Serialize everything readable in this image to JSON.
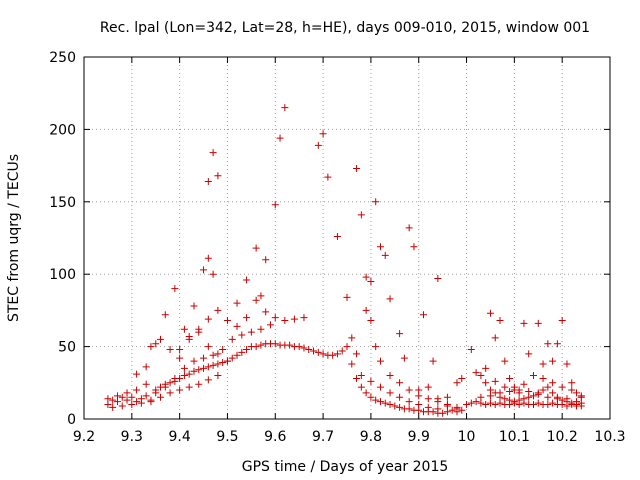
{
  "chart_data": {
    "type": "scatter",
    "title": "Rec. lpal (Lon=342, Lat=28, h=HE), days 009-010, 2015, window 001",
    "xlabel": "GPS time / Days of year 2015",
    "ylabel": "STEC from uqrg / TECUs",
    "xlim": [
      9.2,
      10.3
    ],
    "ylim": [
      0,
      250
    ],
    "xticks": [
      9.2,
      9.3,
      9.4,
      9.5,
      9.6,
      9.7,
      9.8,
      9.9,
      10,
      10.1,
      10.2,
      10.3
    ],
    "xtick_labels": [
      "9.2",
      "9.3",
      "9.4",
      "9.5",
      "9.6",
      "9.7",
      "9.8",
      "9.9",
      "10",
      "10.1",
      "10.2",
      "10.3"
    ],
    "yticks": [
      0,
      50,
      100,
      150,
      200,
      250
    ],
    "ytick_labels": [
      "0",
      "50",
      "100",
      "150",
      "200",
      "250"
    ],
    "grid": true,
    "marker": "+",
    "color": "#cc0000",
    "series": [
      {
        "name": "STEC",
        "points": [
          [
            9.25,
            10
          ],
          [
            9.26,
            13
          ],
          [
            9.27,
            12
          ],
          [
            9.28,
            15
          ],
          [
            9.29,
            13
          ],
          [
            9.3,
            15
          ],
          [
            9.31,
            12
          ],
          [
            9.32,
            14
          ],
          [
            9.33,
            16
          ],
          [
            9.34,
            13
          ],
          [
            9.35,
            20
          ],
          [
            9.36,
            22
          ],
          [
            9.37,
            24
          ],
          [
            9.38,
            25
          ],
          [
            9.39,
            26
          ],
          [
            9.4,
            28
          ],
          [
            9.41,
            30
          ],
          [
            9.42,
            31
          ],
          [
            9.43,
            33
          ],
          [
            9.44,
            34
          ],
          [
            9.45,
            35
          ],
          [
            9.46,
            36
          ],
          [
            9.47,
            37
          ],
          [
            9.48,
            38
          ],
          [
            9.49,
            39
          ],
          [
            9.5,
            40
          ],
          [
            9.51,
            42
          ],
          [
            9.52,
            44
          ],
          [
            9.53,
            46
          ],
          [
            9.54,
            48
          ],
          [
            9.55,
            50
          ],
          [
            9.56,
            50
          ],
          [
            9.57,
            51
          ],
          [
            9.58,
            52
          ],
          [
            9.59,
            52
          ],
          [
            9.6,
            52
          ],
          [
            9.61,
            51
          ],
          [
            9.62,
            51
          ],
          [
            9.63,
            51
          ],
          [
            9.64,
            50
          ],
          [
            9.65,
            50
          ],
          [
            9.66,
            49
          ],
          [
            9.67,
            48
          ],
          [
            9.68,
            47
          ],
          [
            9.69,
            46
          ],
          [
            9.7,
            45
          ],
          [
            9.71,
            44
          ],
          [
            9.72,
            44
          ],
          [
            9.73,
            45
          ],
          [
            9.74,
            47
          ],
          [
            9.75,
            50
          ],
          [
            9.76,
            38
          ],
          [
            9.77,
            28
          ],
          [
            9.78,
            22
          ],
          [
            9.79,
            18
          ],
          [
            9.8,
            15
          ],
          [
            9.81,
            13
          ],
          [
            9.82,
            12
          ],
          [
            9.83,
            11
          ],
          [
            9.84,
            10
          ],
          [
            9.85,
            9
          ],
          [
            9.86,
            8
          ],
          [
            9.87,
            7
          ],
          [
            9.88,
            7
          ],
          [
            9.89,
            6
          ],
          [
            9.9,
            6
          ],
          [
            9.91,
            5
          ],
          [
            9.92,
            5
          ],
          [
            9.93,
            5
          ],
          [
            9.94,
            4
          ],
          [
            9.95,
            4
          ],
          [
            9.96,
            5
          ],
          [
            9.97,
            6
          ],
          [
            9.98,
            5
          ],
          [
            9.25,
            14
          ],
          [
            9.27,
            16
          ],
          [
            9.29,
            18
          ],
          [
            9.31,
            20
          ],
          [
            9.33,
            24
          ],
          [
            9.35,
            18
          ],
          [
            9.37,
            22
          ],
          [
            9.39,
            28
          ],
          [
            9.41,
            35
          ],
          [
            9.43,
            40
          ],
          [
            9.45,
            42
          ],
          [
            9.47,
            44
          ],
          [
            9.49,
            48
          ],
          [
            9.51,
            55
          ],
          [
            9.53,
            58
          ],
          [
            9.55,
            60
          ],
          [
            9.57,
            62
          ],
          [
            9.59,
            65
          ],
          [
            9.26,
            8
          ],
          [
            9.28,
            9
          ],
          [
            9.3,
            10
          ],
          [
            9.32,
            11
          ],
          [
            9.34,
            12
          ],
          [
            9.36,
            15
          ],
          [
            9.38,
            18
          ],
          [
            9.4,
            20
          ],
          [
            9.42,
            22
          ],
          [
            9.44,
            24
          ],
          [
            9.46,
            27
          ],
          [
            9.48,
            30
          ],
          [
            9.34,
            50
          ],
          [
            9.36,
            55
          ],
          [
            9.38,
            48
          ],
          [
            9.4,
            42
          ],
          [
            9.42,
            55
          ],
          [
            9.44,
            60
          ],
          [
            9.46,
            50
          ],
          [
            9.48,
            45
          ],
          [
            9.5,
            40
          ],
          [
            9.31,
            31
          ],
          [
            9.33,
            36
          ],
          [
            9.35,
            52
          ],
          [
            9.37,
            72
          ],
          [
            9.39,
            90
          ],
          [
            9.41,
            62
          ],
          [
            9.43,
            78
          ],
          [
            9.45,
            103
          ],
          [
            9.46,
            111
          ],
          [
            9.47,
            100
          ],
          [
            9.48,
            168
          ],
          [
            9.47,
            184
          ],
          [
            9.46,
            164
          ],
          [
            9.4,
            48
          ],
          [
            9.42,
            57
          ],
          [
            9.44,
            62
          ],
          [
            9.46,
            69
          ],
          [
            9.48,
            75
          ],
          [
            9.5,
            68
          ],
          [
            9.52,
            80
          ],
          [
            9.54,
            96
          ],
          [
            9.56,
            118
          ],
          [
            9.58,
            110
          ],
          [
            9.6,
            148
          ],
          [
            9.61,
            194
          ],
          [
            9.62,
            215
          ],
          [
            9.52,
            64
          ],
          [
            9.54,
            70
          ],
          [
            9.56,
            82
          ],
          [
            9.57,
            85
          ],
          [
            9.58,
            74
          ],
          [
            9.6,
            70
          ],
          [
            9.62,
            68
          ],
          [
            9.64,
            69
          ],
          [
            9.66,
            70
          ],
          [
            9.69,
            189
          ],
          [
            9.7,
            197
          ],
          [
            9.71,
            167
          ],
          [
            9.73,
            126
          ],
          [
            9.75,
            84
          ],
          [
            9.77,
            173
          ],
          [
            9.78,
            141
          ],
          [
            9.79,
            98
          ],
          [
            9.8,
            95
          ],
          [
            9.81,
            150
          ],
          [
            9.82,
            119
          ],
          [
            9.83,
            113
          ],
          [
            9.84,
            83
          ],
          [
            9.86,
            59
          ],
          [
            9.88,
            132
          ],
          [
            9.89,
            119
          ],
          [
            9.91,
            72
          ],
          [
            9.93,
            40
          ],
          [
            9.94,
            97
          ],
          [
            9.76,
            56
          ],
          [
            9.77,
            45
          ],
          [
            9.79,
            75
          ],
          [
            9.8,
            68
          ],
          [
            9.81,
            50
          ],
          [
            9.82,
            40
          ],
          [
            9.84,
            30
          ],
          [
            9.86,
            25
          ],
          [
            9.88,
            20
          ],
          [
            9.9,
            16
          ],
          [
            9.92,
            14
          ],
          [
            9.94,
            12
          ],
          [
            9.96,
            10
          ],
          [
            9.98,
            8
          ],
          [
            9.78,
            30
          ],
          [
            9.8,
            26
          ],
          [
            9.82,
            22
          ],
          [
            9.84,
            18
          ],
          [
            9.86,
            15
          ],
          [
            9.88,
            12
          ],
          [
            9.9,
            10
          ],
          [
            9.92,
            8
          ],
          [
            9.94,
            7
          ],
          [
            9.96,
            9
          ],
          [
            9.98,
            7
          ],
          [
            9.99,
            6
          ],
          [
            9.87,
            42
          ],
          [
            9.9,
            20
          ],
          [
            9.92,
            22
          ],
          [
            9.94,
            14
          ],
          [
            9.96,
            15
          ],
          [
            9.98,
            25
          ],
          [
            9.99,
            28
          ],
          [
            10.0,
            10
          ],
          [
            10.01,
            11
          ],
          [
            10.02,
            12
          ],
          [
            10.03,
            11
          ],
          [
            10.04,
            10
          ],
          [
            10.05,
            11
          ],
          [
            10.06,
            10
          ],
          [
            10.07,
            11
          ],
          [
            10.08,
            10
          ],
          [
            10.09,
            10
          ],
          [
            10.1,
            11
          ],
          [
            10.11,
            10
          ],
          [
            10.12,
            11
          ],
          [
            10.13,
            10
          ],
          [
            10.14,
            10
          ],
          [
            10.15,
            11
          ],
          [
            10.16,
            10
          ],
          [
            10.17,
            10
          ],
          [
            10.18,
            11
          ],
          [
            10.19,
            10
          ],
          [
            10.2,
            10
          ],
          [
            10.21,
            9
          ],
          [
            10.22,
            10
          ],
          [
            10.23,
            9
          ],
          [
            10.24,
            9
          ],
          [
            10.01,
            48
          ],
          [
            10.03,
            30
          ],
          [
            10.04,
            25
          ],
          [
            10.05,
            20
          ],
          [
            10.06,
            18
          ],
          [
            10.07,
            15
          ],
          [
            10.08,
            14
          ],
          [
            10.09,
            13
          ],
          [
            10.1,
            12
          ],
          [
            10.11,
            13
          ],
          [
            10.12,
            14
          ],
          [
            10.13,
            15
          ],
          [
            10.14,
            16
          ],
          [
            10.15,
            18
          ],
          [
            10.16,
            20
          ],
          [
            10.17,
            22
          ],
          [
            10.18,
            18
          ],
          [
            10.19,
            15
          ],
          [
            10.2,
            13
          ],
          [
            10.21,
            12
          ],
          [
            10.22,
            11
          ],
          [
            10.23,
            10
          ],
          [
            10.24,
            11
          ],
          [
            10.02,
            32
          ],
          [
            10.04,
            35
          ],
          [
            10.05,
            73
          ],
          [
            10.06,
            56
          ],
          [
            10.07,
            68
          ],
          [
            10.08,
            40
          ],
          [
            10.09,
            28
          ],
          [
            10.1,
            22
          ],
          [
            10.11,
            18
          ],
          [
            10.12,
            66
          ],
          [
            10.13,
            45
          ],
          [
            10.14,
            30
          ],
          [
            10.15,
            66
          ],
          [
            10.16,
            38
          ],
          [
            10.17,
            52
          ],
          [
            10.18,
            40
          ],
          [
            10.19,
            52
          ],
          [
            10.2,
            68
          ],
          [
            10.21,
            38
          ],
          [
            10.22,
            25
          ],
          [
            10.23,
            18
          ],
          [
            10.24,
            15
          ],
          [
            10.06,
            26
          ],
          [
            10.08,
            22
          ],
          [
            10.1,
            20
          ],
          [
            10.12,
            24
          ],
          [
            10.14,
            30
          ],
          [
            10.16,
            28
          ],
          [
            10.18,
            25
          ],
          [
            10.2,
            22
          ],
          [
            10.22,
            20
          ],
          [
            10.24,
            16
          ],
          [
            10.03,
            15
          ],
          [
            10.05,
            16
          ],
          [
            10.07,
            18
          ],
          [
            10.09,
            19
          ],
          [
            10.11,
            20
          ],
          [
            10.13,
            19
          ],
          [
            10.15,
            17
          ],
          [
            10.17,
            15
          ],
          [
            10.19,
            14
          ],
          [
            10.21,
            14
          ],
          [
            10.23,
            12
          ]
        ]
      }
    ]
  }
}
